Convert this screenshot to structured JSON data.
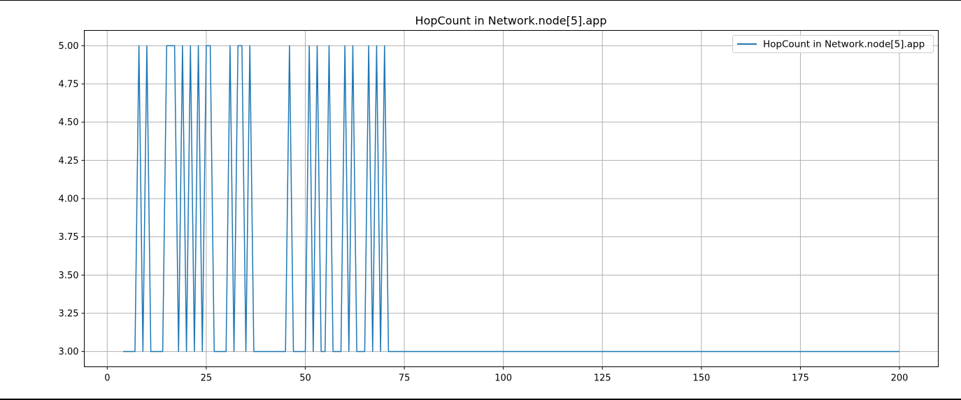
{
  "chart_data": {
    "type": "line",
    "title": "HopCount in Network.node[5].app",
    "xlabel": "",
    "ylabel": "",
    "xlim": [
      -5.8,
      209.8
    ],
    "ylim": [
      2.9,
      5.1
    ],
    "xticks": [
      0,
      25,
      50,
      75,
      100,
      125,
      150,
      175,
      200
    ],
    "xtick_labels": [
      "0",
      "25",
      "50",
      "75",
      "100",
      "125",
      "150",
      "175",
      "200"
    ],
    "yticks": [
      3.0,
      3.25,
      3.5,
      3.75,
      4.0,
      4.25,
      4.5,
      4.75,
      5.0
    ],
    "ytick_labels": [
      "3.00",
      "3.25",
      "3.50",
      "3.75",
      "4.00",
      "4.25",
      "4.50",
      "4.75",
      "5.00"
    ],
    "grid": true,
    "legend_position": "top-right",
    "colors": {
      "series": "#1f77b4",
      "grid": "#b0b0b0",
      "axes": "#000000"
    },
    "series": [
      {
        "name": "HopCount in Network.node[5].app",
        "x": [
          4,
          5,
          6,
          7,
          8,
          9,
          10,
          11,
          12,
          13,
          14,
          15,
          16,
          17,
          18,
          19,
          20,
          21,
          22,
          23,
          24,
          25,
          26,
          27,
          28,
          29,
          30,
          31,
          32,
          33,
          34,
          35,
          36,
          37,
          38,
          39,
          40,
          41,
          42,
          43,
          44,
          45,
          46,
          47,
          48,
          49,
          50,
          51,
          52,
          53,
          54,
          55,
          56,
          57,
          58,
          59,
          60,
          61,
          62,
          63,
          64,
          65,
          66,
          67,
          68,
          69,
          70,
          71,
          72,
          200
        ],
        "y": [
          3,
          3,
          3,
          3,
          5,
          3,
          5,
          3,
          3,
          3,
          3,
          5,
          5,
          5,
          3,
          5,
          3,
          5,
          3,
          5,
          3,
          5,
          5,
          3,
          3,
          3,
          3,
          5,
          3,
          5,
          5,
          3,
          5,
          3,
          3,
          3,
          3,
          3,
          3,
          3,
          3,
          3,
          5,
          3,
          3,
          3,
          3,
          5,
          3,
          5,
          3,
          3,
          5,
          3,
          3,
          3,
          5,
          3,
          5,
          3,
          3,
          3,
          5,
          3,
          5,
          3,
          5,
          3,
          3,
          3
        ]
      }
    ]
  }
}
